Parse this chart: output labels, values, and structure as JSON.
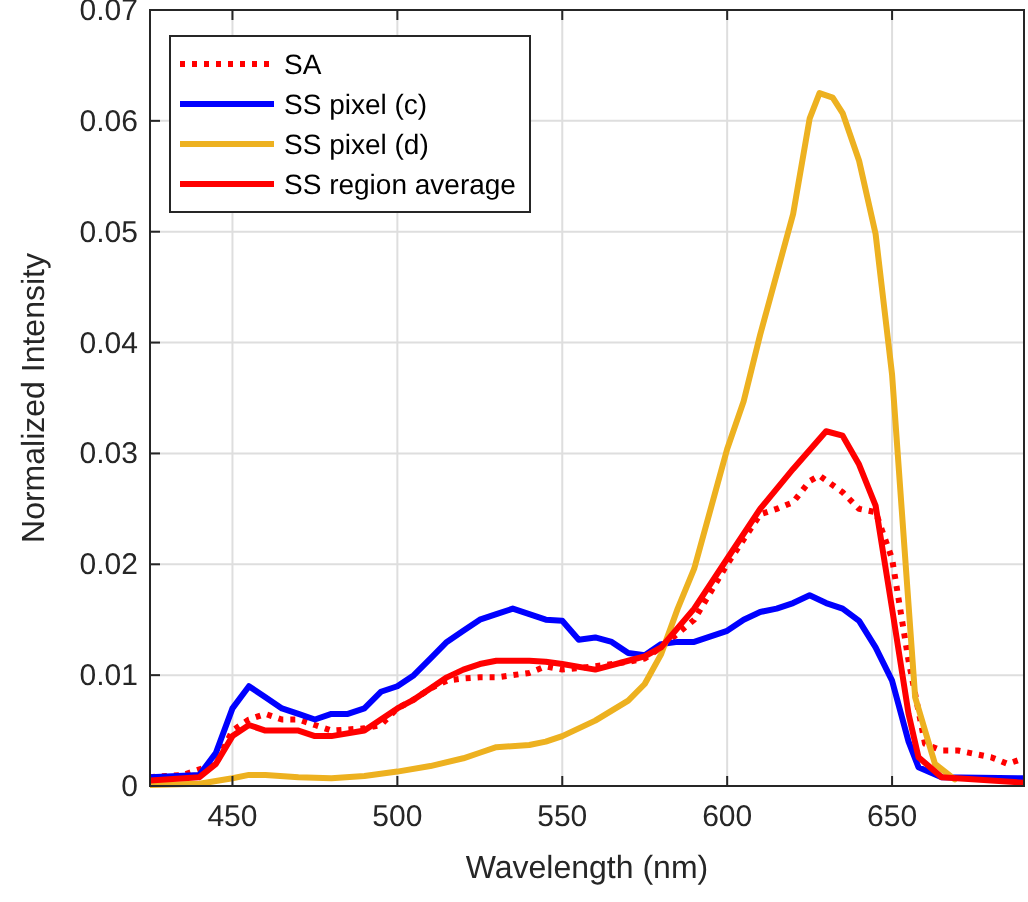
{
  "chart_data": {
    "type": "line",
    "xlabel": "Wavelength (nm)",
    "ylabel": "Normalized Intensity",
    "xlim": [
      425,
      690
    ],
    "xticks": [
      450,
      500,
      550,
      600,
      650
    ],
    "ylim": [
      0,
      0.07
    ],
    "yticks": [
      0,
      0.01,
      0.02,
      0.03,
      0.04,
      0.05,
      0.06,
      0.07
    ],
    "grid": true,
    "legend": "top left",
    "series": [
      {
        "name": "SA",
        "color": "#ff0000",
        "line_style": "dotted",
        "x": [
          425,
          435,
          445,
          450,
          455,
          460,
          465,
          470,
          475,
          480,
          490,
          495,
          500,
          505,
          510,
          515,
          520,
          525,
          530,
          540,
          545,
          550,
          560,
          570,
          575,
          580,
          590,
          600,
          610,
          615,
          620,
          625,
          628,
          635,
          640,
          645,
          650,
          655,
          660,
          665,
          670,
          680,
          685,
          690
        ],
        "values": [
          0.0008,
          0.001,
          0.002,
          0.005,
          0.006,
          0.0065,
          0.006,
          0.006,
          0.0055,
          0.005,
          0.0052,
          0.0055,
          0.007,
          0.0078,
          0.0088,
          0.0095,
          0.0097,
          0.0098,
          0.0098,
          0.0102,
          0.0108,
          0.0105,
          0.0108,
          0.0112,
          0.0115,
          0.0125,
          0.015,
          0.02,
          0.0245,
          0.025,
          0.0256,
          0.0275,
          0.028,
          0.0265,
          0.025,
          0.0247,
          0.0205,
          0.0113,
          0.0038,
          0.0032,
          0.0032,
          0.0026,
          0.002,
          0.0025
        ]
      },
      {
        "name": "SS pixel (c)",
        "color": "#0000ff",
        "x": [
          425,
          440,
          445,
          450,
          455,
          460,
          465,
          470,
          475,
          480,
          485,
          490,
          495,
          500,
          505,
          510,
          515,
          520,
          525,
          530,
          535,
          540,
          545,
          550,
          555,
          560,
          565,
          570,
          575,
          580,
          585,
          590,
          595,
          600,
          605,
          610,
          615,
          620,
          625,
          630,
          635,
          640,
          645,
          650,
          655,
          658,
          665,
          690
        ],
        "values": [
          0.0008,
          0.001,
          0.003,
          0.007,
          0.009,
          0.008,
          0.007,
          0.0065,
          0.006,
          0.0065,
          0.0065,
          0.007,
          0.0085,
          0.009,
          0.01,
          0.0115,
          0.013,
          0.014,
          0.015,
          0.0155,
          0.016,
          0.0155,
          0.015,
          0.0149,
          0.0132,
          0.0134,
          0.013,
          0.012,
          0.0118,
          0.0128,
          0.013,
          0.013,
          0.0135,
          0.014,
          0.015,
          0.0157,
          0.016,
          0.0165,
          0.0172,
          0.0165,
          0.016,
          0.0149,
          0.0125,
          0.0095,
          0.004,
          0.0017,
          0.0008,
          0.0007
        ]
      },
      {
        "name": "SS pixel (d)",
        "color": "#edb120",
        "x": [
          425,
          440,
          450,
          455,
          460,
          470,
          480,
          490,
          500,
          510,
          520,
          525,
          530,
          540,
          545,
          550,
          560,
          570,
          575,
          580,
          585,
          590,
          600,
          605,
          610,
          620,
          625,
          628,
          632,
          635,
          640,
          645,
          650,
          657,
          663,
          669
        ],
        "values": [
          0.0001,
          0.0002,
          0.0007,
          0.001,
          0.001,
          0.0008,
          0.0007,
          0.0009,
          0.0013,
          0.0018,
          0.0025,
          0.003,
          0.0035,
          0.0037,
          0.004,
          0.0045,
          0.0059,
          0.0077,
          0.0092,
          0.0119,
          0.016,
          0.0196,
          0.0304,
          0.0347,
          0.0407,
          0.0516,
          0.0602,
          0.0625,
          0.0621,
          0.0607,
          0.0564,
          0.0498,
          0.0371,
          0.008,
          0.002,
          0.0006
        ]
      },
      {
        "name": "SS region average",
        "color": "#ff0000",
        "x": [
          425,
          440,
          445,
          450,
          455,
          460,
          470,
          475,
          480,
          490,
          495,
          500,
          505,
          510,
          515,
          520,
          525,
          530,
          540,
          545,
          550,
          560,
          570,
          575,
          580,
          590,
          600,
          610,
          620,
          630,
          635,
          640,
          645,
          650,
          655,
          658,
          665,
          690
        ],
        "values": [
          0.0005,
          0.0008,
          0.002,
          0.0045,
          0.0055,
          0.005,
          0.005,
          0.0045,
          0.0045,
          0.005,
          0.006,
          0.007,
          0.0078,
          0.0088,
          0.0098,
          0.0105,
          0.011,
          0.0113,
          0.0113,
          0.0112,
          0.011,
          0.0105,
          0.0113,
          0.0117,
          0.0125,
          0.016,
          0.0205,
          0.025,
          0.0286,
          0.032,
          0.0316,
          0.029,
          0.0253,
          0.016,
          0.0065,
          0.0026,
          0.0008,
          0.0003
        ]
      }
    ]
  }
}
